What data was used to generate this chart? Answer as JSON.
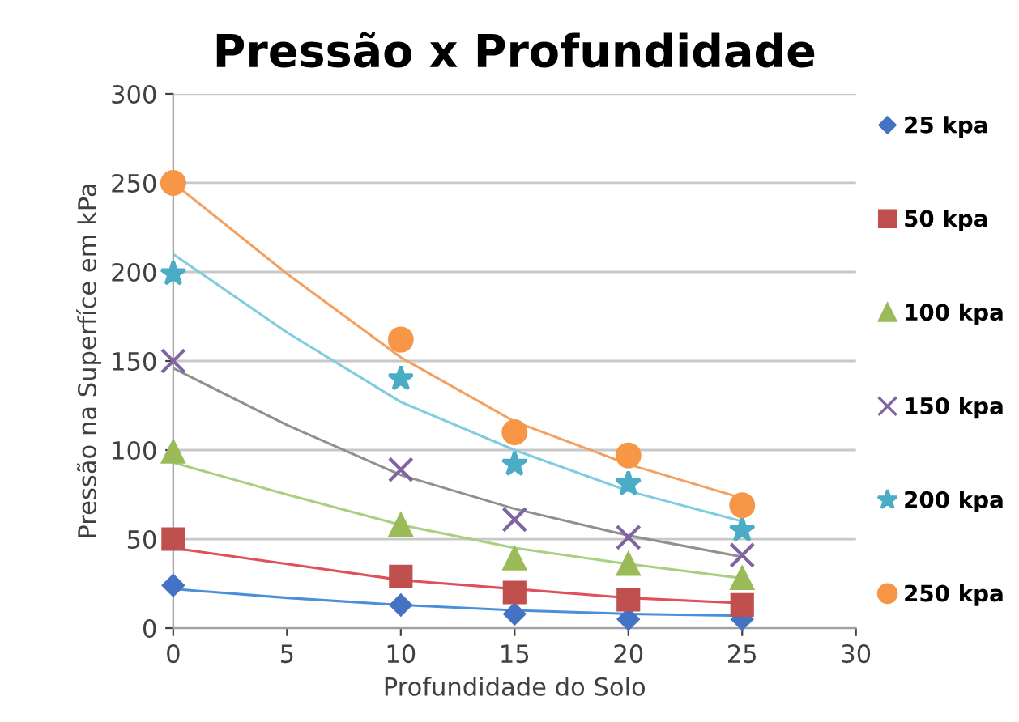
{
  "chart_data": {
    "type": "scatter",
    "title": "Pressão x Profundidade",
    "xlabel": "Profundidade do Solo",
    "ylabel": "Pressão na Superfíce em kPa",
    "xlim": [
      0,
      30
    ],
    "xticks": [
      0,
      5,
      10,
      15,
      20,
      25,
      30
    ],
    "ylim": [
      0,
      300
    ],
    "yticks": [
      0,
      50,
      100,
      150,
      200,
      250,
      300
    ],
    "grid": "y",
    "legend": "right",
    "series": [
      {
        "name": "25 kpa",
        "color": "#4472c4",
        "marker": "diamond",
        "x": [
          0,
          10,
          15,
          20,
          25
        ],
        "values": [
          24,
          13,
          8,
          5,
          5
        ]
      },
      {
        "name": "50 kpa",
        "color": "#c0504d",
        "marker": "square",
        "x": [
          0,
          10,
          15,
          20,
          25
        ],
        "values": [
          50,
          29,
          20,
          16,
          13
        ]
      },
      {
        "name": "100 kpa",
        "color": "#9bbb59",
        "marker": "triangle",
        "x": [
          0,
          10,
          15,
          20,
          25
        ],
        "values": [
          99,
          58,
          39,
          36,
          28
        ]
      },
      {
        "name": "150 kpa",
        "color": "#8064a2",
        "marker": "cross",
        "x": [
          0,
          10,
          15,
          20,
          25
        ],
        "values": [
          150,
          89,
          61,
          51,
          41
        ]
      },
      {
        "name": "200 kpa",
        "color": "#4bacc6",
        "marker": "star",
        "x": [
          0,
          10,
          15,
          20,
          25
        ],
        "values": [
          199,
          140,
          92,
          81,
          55
        ]
      },
      {
        "name": "250 kpa",
        "color": "#f79646",
        "marker": "circle",
        "x": [
          0,
          10,
          15,
          20,
          25
        ],
        "values": [
          250,
          162,
          110,
          97,
          69
        ]
      },
      {
        "type": "line",
        "color": "#4a90d9",
        "x": [
          0,
          5,
          10,
          15,
          20,
          25
        ],
        "values": [
          22,
          17,
          13,
          10,
          8,
          7
        ]
      },
      {
        "type": "line",
        "color": "#e0505a",
        "x": [
          0,
          5,
          10,
          15,
          20,
          25
        ],
        "values": [
          45,
          36,
          27,
          22,
          17,
          14
        ]
      },
      {
        "type": "line",
        "color": "#a8d080",
        "x": [
          0,
          5,
          10,
          15,
          20,
          25
        ],
        "values": [
          93,
          75,
          58,
          45,
          36,
          28
        ]
      },
      {
        "type": "line",
        "color": "#909090",
        "x": [
          0,
          5,
          10,
          15,
          20,
          25
        ],
        "values": [
          146,
          114,
          86,
          67,
          52,
          40
        ]
      },
      {
        "type": "line",
        "color": "#80cce0",
        "x": [
          0,
          5,
          10,
          15,
          20,
          25
        ],
        "values": [
          210,
          166,
          127,
          100,
          77,
          60
        ]
      },
      {
        "type": "line",
        "color": "#f4a060",
        "x": [
          0,
          5,
          10,
          15,
          20,
          25
        ],
        "values": [
          250,
          199,
          152,
          116,
          92,
          73
        ]
      }
    ]
  }
}
